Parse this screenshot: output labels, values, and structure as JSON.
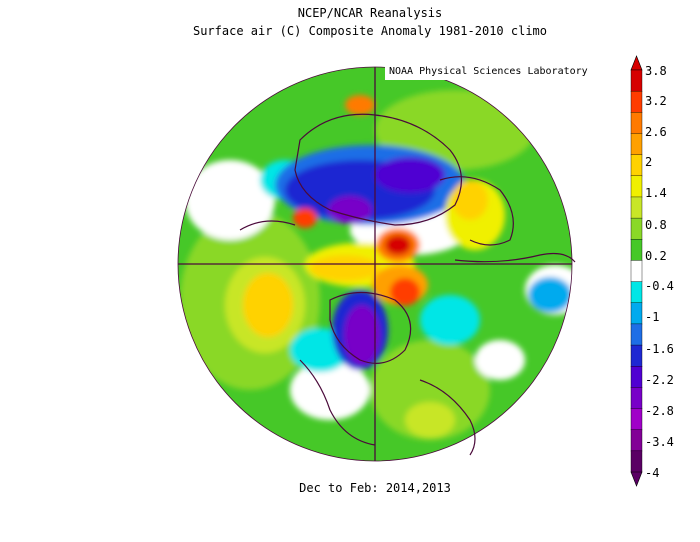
{
  "header": {
    "title": "NCEP/NCAR Reanalysis",
    "subtitle": "Surface air (C) Composite Anomaly 1981-2010 climo",
    "credit": "NOAA Physical Sciences Laboratory"
  },
  "footer": {
    "period": "Dec to Feb: 2014,2013"
  },
  "colorbar": {
    "labels": [
      "3.8",
      "3.2",
      "2.6",
      "2",
      "1.4",
      "0.8",
      "0.2",
      "-0.4",
      "-1",
      "-1.6",
      "-2.2",
      "-2.8",
      "-3.4",
      "-4"
    ],
    "colors": [
      "#d60000",
      "#ff3c00",
      "#ff7a00",
      "#ffa000",
      "#ffd200",
      "#f0f000",
      "#c8e628",
      "#8ad828",
      "#46c828",
      "#ffffff",
      "#00e6e6",
      "#00aaee",
      "#1e6ee6",
      "#1e28d2",
      "#5000d2",
      "#7800c8",
      "#a000c8",
      "#820096",
      "#5a0064"
    ]
  },
  "map": {
    "projection": "north-polar-stereographic"
  }
}
